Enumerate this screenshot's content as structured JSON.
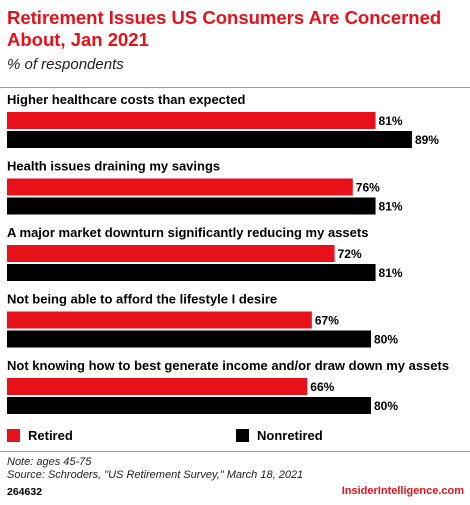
{
  "colors": {
    "retired": "#e8111a",
    "nonretired": "#000000",
    "accent": "#e8111a"
  },
  "chart_data": {
    "type": "bar",
    "orientation": "horizontal",
    "title": "Retirement Issues US Consumers Are Concerned About, Jan 2021",
    "subtitle": "% of respondents",
    "categories": [
      "Higher healthcare costs than expected",
      "Health issues draining my savings",
      "A major market downturn significantly reducing my assets",
      "Not being able to afford the lifestyle I desire",
      "Not knowing how to best generate income and/or draw down my assets"
    ],
    "series": [
      {
        "name": "Retired",
        "values": [
          81,
          76,
          72,
          67,
          66
        ]
      },
      {
        "name": "Nonretired",
        "values": [
          89,
          81,
          81,
          80,
          80
        ]
      }
    ],
    "value_suffix": "%",
    "xlim": [
      0,
      100
    ],
    "legend_position": "bottom"
  },
  "notes": {
    "note": "Note: ages 45-75",
    "source": "Source: Schroders, \"US Retirement Survey,\" March 18, 2021"
  },
  "footer": {
    "id": "264632",
    "brand": "InsiderIntelligence.com"
  }
}
